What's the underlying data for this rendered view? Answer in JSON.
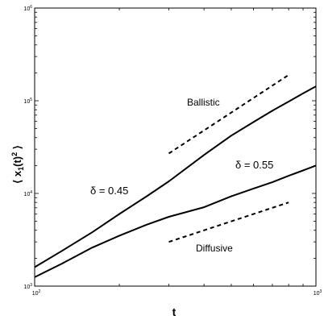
{
  "chart_data": {
    "type": "line",
    "xscale": "log",
    "yscale": "log",
    "xlim": [
      100,
      1000
    ],
    "ylim": [
      1000,
      1000000
    ],
    "xlabel": "t",
    "ylabel_parts": [
      "⟨ x",
      "1",
      "(t)",
      "2",
      " ⟩"
    ],
    "xticks": [
      {
        "base": "10",
        "exp": "2",
        "value": 100
      },
      {
        "base": "10",
        "exp": "3",
        "value": 1000
      }
    ],
    "yticks": [
      {
        "base": "10",
        "exp": "3",
        "value": 1000
      },
      {
        "base": "10",
        "exp": "4",
        "value": 10000
      },
      {
        "base": "10",
        "exp": "5",
        "value": 100000
      },
      {
        "base": "10",
        "exp": "6",
        "value": 1000000
      }
    ],
    "grid": false,
    "series": [
      {
        "label": "δ = 0.45",
        "x": [
          100,
          125,
          160,
          200,
          250,
          300,
          400,
          500,
          600,
          700,
          800,
          900,
          1000
        ],
        "y": [
          1600,
          2400,
          3800,
          6000,
          9300,
          13500,
          26000,
          42000,
          59000,
          78000,
          98000,
          120000,
          143000
        ]
      },
      {
        "label": "δ = 0.55",
        "x": [
          100,
          125,
          160,
          200,
          250,
          300,
          400,
          500,
          600,
          700,
          800,
          900,
          1000
        ],
        "y": [
          1250,
          1750,
          2600,
          3500,
          4600,
          5600,
          7100,
          9300,
          11300,
          13200,
          15500,
          17700,
          20000
        ]
      }
    ],
    "reference_lines": [
      {
        "label": "Ballistic",
        "style": "dashed",
        "x": [
          300,
          800
        ],
        "y": [
          27000,
          190000
        ]
      },
      {
        "label": "Diffusive",
        "style": "dashed",
        "x": [
          300,
          800
        ],
        "y": [
          3000,
          8000
        ]
      }
    ]
  }
}
